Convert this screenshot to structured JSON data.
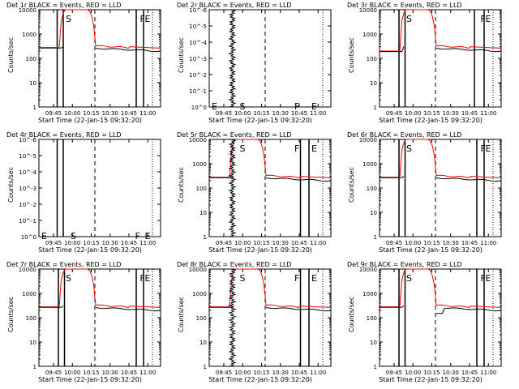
{
  "page": {
    "xlabel": "Start Time (22-Jan-15 09:32:20)",
    "ylabel": "Counts/sec"
  },
  "colors": {
    "events": "#000000",
    "lld": "#ff0000",
    "axes": "#000000"
  },
  "xticks": [
    "09:45",
    "10:00",
    "10:15",
    "10:30",
    "10:45",
    "11:00"
  ],
  "chart_data": [
    {
      "type": "line",
      "title": "Det 1r  BLACK = Events, RED = LLD",
      "scale": "log",
      "ylim": [
        1,
        10000
      ],
      "yticks": [
        "1",
        "10",
        "100",
        "1000",
        "10000"
      ],
      "letters": [
        {
          "t": "S",
          "x": 0.22,
          "yfrac": 0.96
        },
        {
          "t": "F",
          "x": 0.83,
          "yfrac": 0.96
        },
        {
          "t": "E",
          "x": 0.87,
          "yfrac": 0.96
        }
      ],
      "bars": [
        0.15,
        0.2,
        0.8,
        0.86
      ],
      "dashed": 0.46,
      "shape": "A"
    },
    {
      "type": "line",
      "title": "Det 2r  BLACK = Events, RED = LLD",
      "scale": "exp",
      "ylim": [
        1,
        1e-06
      ],
      "yticks": [
        "10^0",
        "10^-1",
        "10^-2",
        "10^-3",
        "10^-4",
        "10^-5",
        "10^-6"
      ],
      "letters": [
        {
          "t": "E",
          "x": 0.02,
          "yfrac": 0.06
        },
        {
          "t": "S",
          "x": 0.25,
          "yfrac": 0.06
        },
        {
          "t": "F",
          "x": 0.7,
          "yfrac": 0.06
        },
        {
          "t": "E",
          "x": 0.84,
          "yfrac": 0.06
        }
      ],
      "bars": [],
      "dashed": 0.46,
      "shape": "noise"
    },
    {
      "type": "line",
      "title": "Det 3r  BLACK = Events, RED = LLD",
      "scale": "log",
      "ylim": [
        1,
        10000
      ],
      "yticks": [
        "1",
        "10",
        "100",
        "1000",
        "10000"
      ],
      "letters": [
        {
          "t": "S",
          "x": 0.22,
          "yfrac": 0.96
        },
        {
          "t": "F",
          "x": 0.83,
          "yfrac": 0.96
        },
        {
          "t": "E",
          "x": 0.87,
          "yfrac": 0.96
        }
      ],
      "bars": [
        0.16,
        0.21,
        0.78,
        0.86
      ],
      "dashed": 0.46,
      "shape": "B"
    },
    {
      "type": "line",
      "title": "Det 4r  BLACK = Events, RED = LLD",
      "scale": "exp",
      "ylim": [
        1,
        1e-06
      ],
      "yticks": [
        "10^0",
        "10^-1",
        "10^-2",
        "10^-3",
        "10^-4",
        "10^-5",
        "10^-6"
      ],
      "letters": [
        {
          "t": "E",
          "x": 0.02,
          "yfrac": 0.06
        },
        {
          "t": "S",
          "x": 0.26,
          "yfrac": 0.06
        },
        {
          "t": "F",
          "x": 0.79,
          "yfrac": 0.06
        },
        {
          "t": "E",
          "x": 0.87,
          "yfrac": 0.06
        }
      ],
      "bars": [
        0.15,
        0.2
      ],
      "dashed": 0.46,
      "shape": "empty"
    },
    {
      "type": "line",
      "title": "Det 5r  BLACK = Events, RED = LLD",
      "scale": "log",
      "ylim": [
        1,
        10000
      ],
      "yticks": [
        "1",
        "10",
        "100",
        "1000",
        "10000"
      ],
      "letters": [
        {
          "t": "S",
          "x": 0.25,
          "yfrac": 0.96
        },
        {
          "t": "F",
          "x": 0.7,
          "yfrac": 0.96
        },
        {
          "t": "E",
          "x": 0.84,
          "yfrac": 0.96
        }
      ],
      "bars": [
        0.75,
        0.82
      ],
      "dashed": 0.46,
      "shape": "Anoise"
    },
    {
      "type": "line",
      "title": "Det 6r  BLACK = Events, RED = LLD",
      "scale": "log",
      "ylim": [
        1,
        10000
      ],
      "yticks": [
        "1",
        "10",
        "100",
        "1000",
        "10000"
      ],
      "letters": [
        {
          "t": "S",
          "x": 0.22,
          "yfrac": 0.96
        },
        {
          "t": "F",
          "x": 0.83,
          "yfrac": 0.96
        },
        {
          "t": "E",
          "x": 0.87,
          "yfrac": 0.96
        }
      ],
      "bars": [
        0.16,
        0.21,
        0.8,
        0.86
      ],
      "dashed": 0.46,
      "shape": "A"
    },
    {
      "type": "line",
      "title": "Det 7r  BLACK = Events, RED = LLD",
      "scale": "log",
      "ylim": [
        1,
        10000
      ],
      "yticks": [
        "1",
        "10",
        "100",
        "1000",
        "10000"
      ],
      "letters": [
        {
          "t": "S",
          "x": 0.22,
          "yfrac": 0.96
        },
        {
          "t": "F",
          "x": 0.83,
          "yfrac": 0.96
        },
        {
          "t": "E",
          "x": 0.87,
          "yfrac": 0.96
        }
      ],
      "bars": [
        0.16,
        0.21,
        0.8,
        0.86
      ],
      "dashed": 0.46,
      "shape": "A"
    },
    {
      "type": "line",
      "title": "Det 8r  BLACK = Events, RED = LLD",
      "scale": "log",
      "ylim": [
        1,
        10000
      ],
      "yticks": [
        "1",
        "10",
        "100",
        "1000",
        "10000"
      ],
      "letters": [
        {
          "t": "S",
          "x": 0.25,
          "yfrac": 0.96
        },
        {
          "t": "F",
          "x": 0.7,
          "yfrac": 0.96
        },
        {
          "t": "E",
          "x": 0.84,
          "yfrac": 0.96
        }
      ],
      "bars": [
        0.75,
        0.82
      ],
      "dashed": 0.46,
      "shape": "Anoise"
    },
    {
      "type": "line",
      "title": "Det 9r  BLACK = Events, RED = LLD",
      "scale": "log",
      "ylim": [
        1,
        10000
      ],
      "yticks": [
        "1",
        "10",
        "100",
        "1000",
        "10000"
      ],
      "letters": [
        {
          "t": "S",
          "x": 0.22,
          "yfrac": 0.96
        },
        {
          "t": "F",
          "x": 0.83,
          "yfrac": 0.96
        },
        {
          "t": "E",
          "x": 0.87,
          "yfrac": 0.96
        }
      ],
      "bars": [
        0.16,
        0.21,
        0.8,
        0.86
      ],
      "dashed": 0.46,
      "shape": "C"
    }
  ]
}
